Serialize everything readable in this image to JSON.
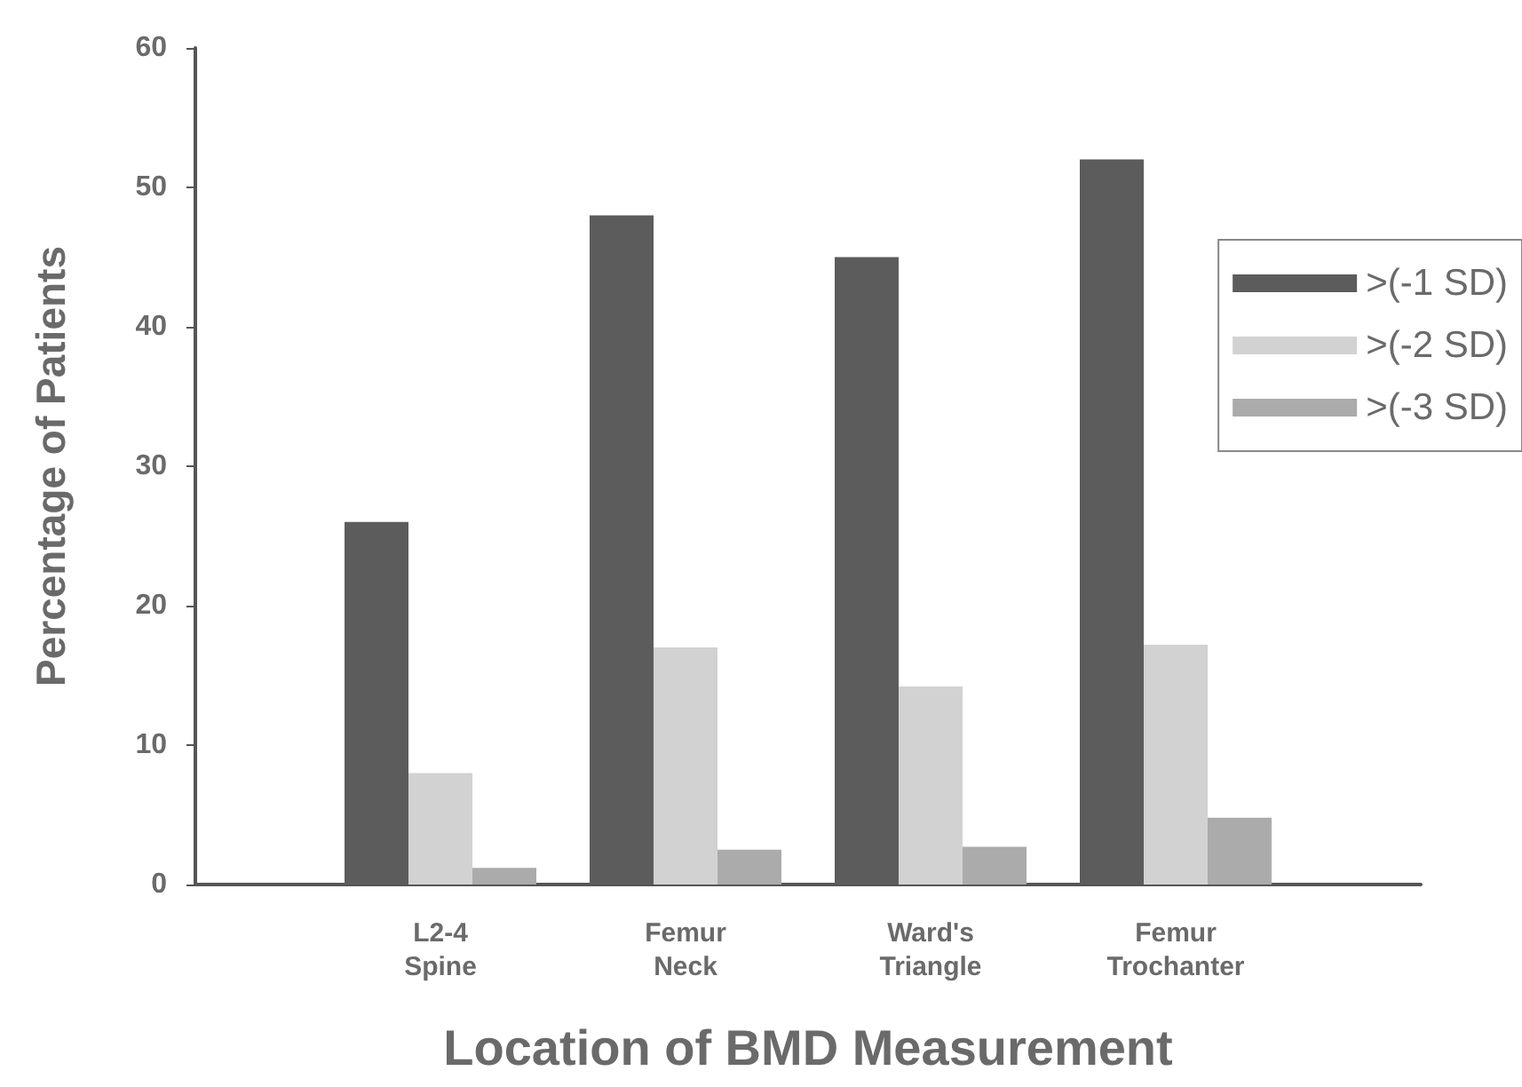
{
  "chart_data": {
    "type": "bar",
    "xlabel": "Location of BMD Measurement",
    "ylabel": "Percentage of Patients",
    "categories": [
      null,
      "L2-4\nSpine",
      "Femur\nNeck",
      "Ward's\nTriangle",
      "Femur\nTrochanter",
      null
    ],
    "series": [
      {
        "name": ">(-1 SD)",
        "color": "#5c5c5c",
        "values": [
          null,
          26,
          48,
          45,
          52,
          null
        ]
      },
      {
        "name": ">(-2 SD)",
        "color": "#d2d2d2",
        "values": [
          null,
          8,
          17,
          14.2,
          17.2,
          null
        ]
      },
      {
        "name": ">(-3 SD)",
        "color": "#ababab",
        "values": [
          null,
          1.2,
          2.5,
          2.7,
          4.8,
          null
        ]
      }
    ],
    "ylim": [
      0,
      60
    ],
    "yticks": [
      0,
      10,
      20,
      30,
      40,
      50,
      60
    ],
    "grid": false,
    "legend": "right"
  }
}
